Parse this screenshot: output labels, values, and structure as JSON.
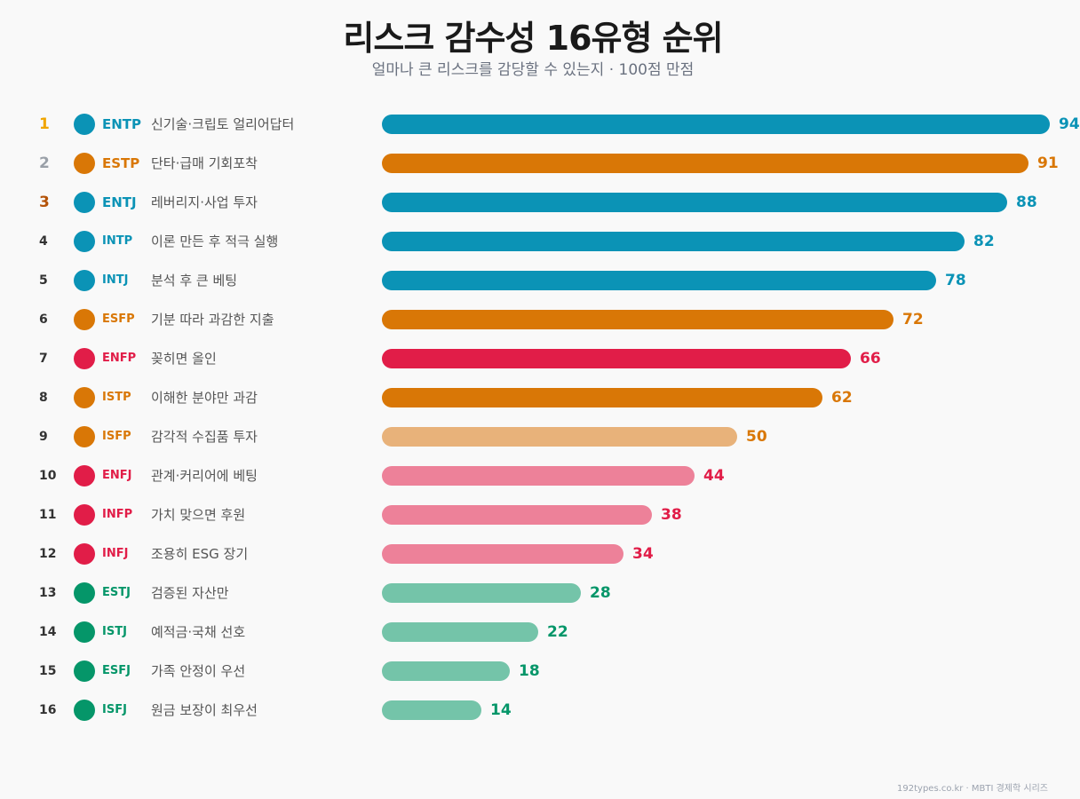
{
  "header": {
    "title": "리스크 감수성 16유형 순위",
    "subtitle": "얼마나 큰 리스크를 감당할 수 있는지 · 100점 만점"
  },
  "footer": "192types.co.kr · MBTI 경제학 시리즈",
  "colors": {
    "teal": "#0b93b6",
    "orange": "#d97706",
    "red": "#e11d48",
    "green": "#059669",
    "orange_light": "#e8b27a",
    "red_light": "#ed8199",
    "green_light": "#74c4a9",
    "rank_gold": "#f0a500",
    "rank_silver": "#9aa0a8",
    "rank_bronze": "#b45309",
    "rank_default": "#333333"
  },
  "chart_data": {
    "type": "bar",
    "orientation": "horizontal",
    "xlim": [
      0,
      100
    ],
    "grid": false,
    "rows": [
      {
        "rank": "1",
        "type": "ENTP",
        "desc": "신기술·크립토 얼리어답터",
        "value": 94,
        "label": "94",
        "color": "#0b93b6",
        "bar_color": "#0b93b6"
      },
      {
        "rank": "2",
        "type": "ESTP",
        "desc": "단타·급매 기회포착",
        "value": 91,
        "label": "91",
        "color": "#d97706",
        "bar_color": "#d97706"
      },
      {
        "rank": "3",
        "type": "ENTJ",
        "desc": "레버리지·사업 투자",
        "value": 88,
        "label": "88",
        "color": "#0b93b6",
        "bar_color": "#0b93b6"
      },
      {
        "rank": "4",
        "type": "INTP",
        "desc": "이론 만든 후 적극 실행",
        "value": 82,
        "label": "82",
        "color": "#0b93b6",
        "bar_color": "#0b93b6"
      },
      {
        "rank": "5",
        "type": "INTJ",
        "desc": "분석 후 큰 베팅",
        "value": 78,
        "label": "78",
        "color": "#0b93b6",
        "bar_color": "#0b93b6"
      },
      {
        "rank": "6",
        "type": "ESFP",
        "desc": "기분 따라 과감한 지출",
        "value": 72,
        "label": "72",
        "color": "#d97706",
        "bar_color": "#d97706"
      },
      {
        "rank": "7",
        "type": "ENFP",
        "desc": "꽂히면 올인",
        "value": 66,
        "label": "66",
        "color": "#e11d48",
        "bar_color": "#e11d48"
      },
      {
        "rank": "8",
        "type": "ISTP",
        "desc": "이해한 분야만 과감",
        "value": 62,
        "label": "62",
        "color": "#d97706",
        "bar_color": "#d97706"
      },
      {
        "rank": "9",
        "type": "ISFP",
        "desc": "감각적 수집품 투자",
        "value": 50,
        "label": "50",
        "color": "#d97706",
        "bar_color": "#e8b27a"
      },
      {
        "rank": "10",
        "type": "ENFJ",
        "desc": "관계·커리어에 베팅",
        "value": 44,
        "label": "44",
        "color": "#e11d48",
        "bar_color": "#ed8199"
      },
      {
        "rank": "11",
        "type": "INFP",
        "desc": "가치 맞으면 후원",
        "value": 38,
        "label": "38",
        "color": "#e11d48",
        "bar_color": "#ed8199"
      },
      {
        "rank": "12",
        "type": "INFJ",
        "desc": "조용히 ESG 장기",
        "value": 34,
        "label": "34",
        "color": "#e11d48",
        "bar_color": "#ed8199"
      },
      {
        "rank": "13",
        "type": "ESTJ",
        "desc": "검증된 자산만",
        "value": 28,
        "label": "28",
        "color": "#059669",
        "bar_color": "#74c4a9"
      },
      {
        "rank": "14",
        "type": "ISTJ",
        "desc": "예적금·국채 선호",
        "value": 22,
        "label": "22",
        "color": "#059669",
        "bar_color": "#74c4a9"
      },
      {
        "rank": "15",
        "type": "ESFJ",
        "desc": "가족 안정이 우선",
        "value": 18,
        "label": "18",
        "color": "#059669",
        "bar_color": "#74c4a9"
      },
      {
        "rank": "16",
        "type": "ISFJ",
        "desc": "원금 보장이 최우선",
        "value": 14,
        "label": "14",
        "color": "#059669",
        "bar_color": "#74c4a9"
      }
    ]
  }
}
